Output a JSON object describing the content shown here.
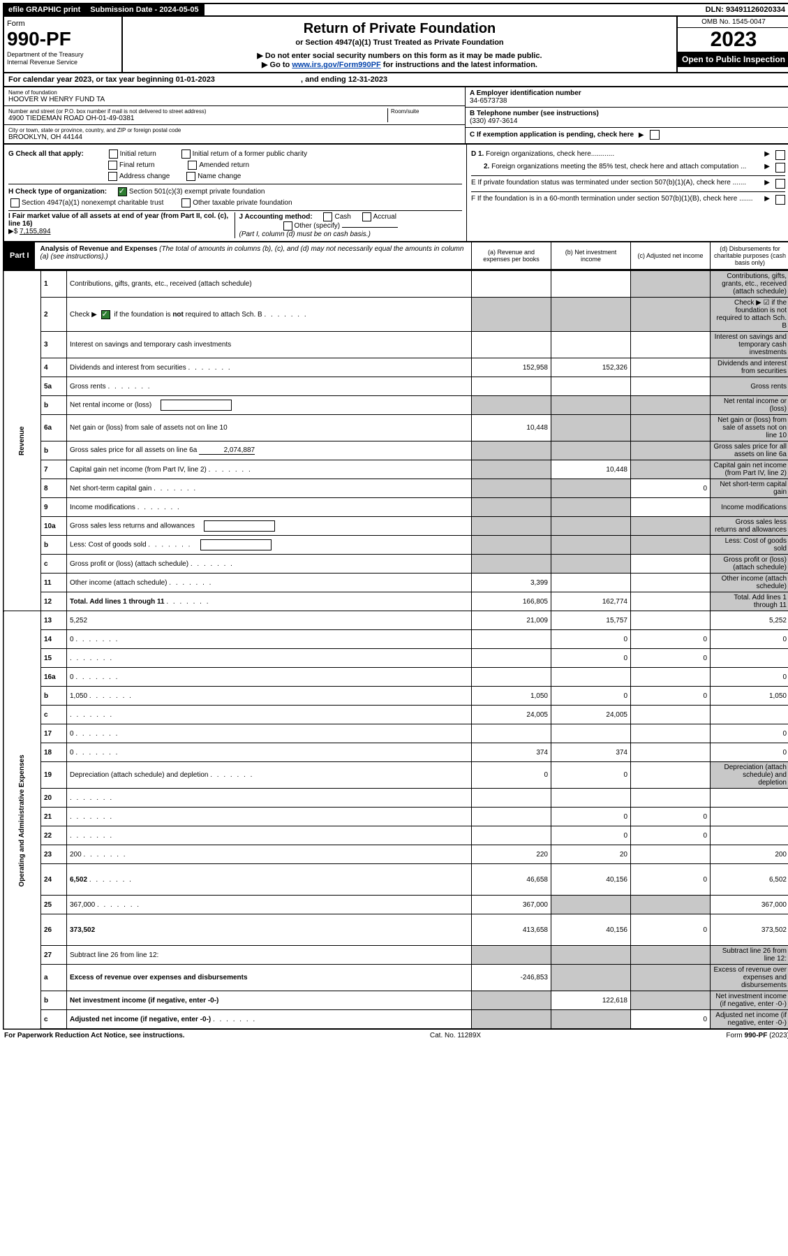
{
  "topbar": {
    "efile": "efile GRAPHIC print",
    "submission_label": "Submission Date - 2024-05-05",
    "dln": "DLN: 93491126020334"
  },
  "header": {
    "form_word": "Form",
    "form_number": "990-PF",
    "dept": "Department of the Treasury",
    "irs": "Internal Revenue Service",
    "title": "Return of Private Foundation",
    "subtitle": "or Section 4947(a)(1) Trust Treated as Private Foundation",
    "note1": "▶ Do not enter social security numbers on this form as it may be made public.",
    "note2_pre": "▶ Go to ",
    "note2_link": "www.irs.gov/Form990PF",
    "note2_post": " for instructions and the latest information.",
    "omb": "OMB No. 1545-0047",
    "year": "2023",
    "open": "Open to Public Inspection"
  },
  "calendar": {
    "text_pre": "For calendar year 2023, or tax year beginning ",
    "begin": "01-01-2023",
    "mid": " , and ending ",
    "end": "12-31-2023"
  },
  "info": {
    "name_label": "Name of foundation",
    "name": "HOOVER W HENRY FUND TA",
    "addr_label": "Number and street (or P.O. box number if mail is not delivered to street address)",
    "addr": "4900 TIEDEMAN ROAD OH-01-49-0381",
    "room_label": "Room/suite",
    "city_label": "City or town, state or province, country, and ZIP or foreign postal code",
    "city": "BROOKLYN, OH  44144",
    "a_label": "A Employer identification number",
    "a_val": "34-6573738",
    "b_label": "B Telephone number (see instructions)",
    "b_val": "(330) 497-3614",
    "c_label": "C If exemption application is pending, check here"
  },
  "g": {
    "label": "G Check all that apply:",
    "opts": [
      "Initial return",
      "Final return",
      "Address change",
      "Initial return of a former public charity",
      "Amended return",
      "Name change"
    ]
  },
  "h": {
    "label": "H Check type of organization:",
    "o1": "Section 501(c)(3) exempt private foundation",
    "o2": "Section 4947(a)(1) nonexempt charitable trust",
    "o3": "Other taxable private foundation"
  },
  "i": {
    "label": "I Fair market value of all assets at end of year (from Part II, col. (c), line 16)",
    "arrow": "▶$",
    "val": "7,155,894"
  },
  "j": {
    "label": "J Accounting method:",
    "cash": "Cash",
    "accrual": "Accrual",
    "other": "Other (specify)",
    "note": "(Part I, column (d) must be on cash basis.)"
  },
  "right_checks": {
    "d1": "D 1. Foreign organizations, check here............",
    "d2": "2. Foreign organizations meeting the 85% test, check here and attach computation ...",
    "e": "E  If private foundation status was terminated under section 507(b)(1)(A), check here .......",
    "f": "F  If the foundation is in a 60-month termination under section 507(b)(1)(B), check here .......",
    "arrow": "▶"
  },
  "part1": {
    "label": "Part I",
    "title": "Analysis of Revenue and Expenses",
    "title_note": " (The total of amounts in columns (b), (c), and (d) may not necessarily equal the amounts in column (a) (see instructions).)",
    "col_a": "(a)   Revenue and expenses per books",
    "col_b": "(b)   Net investment income",
    "col_c": "(c)   Adjusted net income",
    "col_d": "(d)  Disbursements for charitable purposes (cash basis only)"
  },
  "side_labels": {
    "revenue": "Revenue",
    "expenses": "Operating and Administrative Expenses"
  },
  "rows": [
    {
      "n": "1",
      "d": "Contributions, gifts, grants, etc., received (attach schedule)",
      "a": "",
      "b": "",
      "c_grey": true,
      "d_grey": true
    },
    {
      "n": "2",
      "d": "Check ▶ ☑ if the foundation is not required to attach Sch. B",
      "a_grey": true,
      "b_grey": true,
      "c_grey": true,
      "d_grey": true,
      "dots": true,
      "bold_not": true
    },
    {
      "n": "3",
      "d": "Interest on savings and temporary cash investments",
      "a": "",
      "b": "",
      "c": "",
      "d_grey": true
    },
    {
      "n": "4",
      "d": "Dividends and interest from securities",
      "a": "152,958",
      "b": "152,326",
      "c": "",
      "d_grey": true,
      "dots": true
    },
    {
      "n": "5a",
      "d": "Gross rents",
      "a": "",
      "b": "",
      "c": "",
      "d_grey": true,
      "dots": true
    },
    {
      "n": "b",
      "d": "Net rental income or (loss)",
      "a_grey": true,
      "b_grey": true,
      "c_grey": true,
      "d_grey": true,
      "inline_blank": true
    },
    {
      "n": "6a",
      "d": "Net gain or (loss) from sale of assets not on line 10",
      "a": "10,448",
      "b_grey": true,
      "c_grey": true,
      "d_grey": true
    },
    {
      "n": "b",
      "d": "Gross sales price for all assets on line 6a",
      "a_grey": true,
      "b_grey": true,
      "c_grey": true,
      "d_grey": true,
      "inline_val": "2,074,887"
    },
    {
      "n": "7",
      "d": "Capital gain net income (from Part IV, line 2)",
      "a_grey": true,
      "b": "10,448",
      "c_grey": true,
      "d_grey": true,
      "dots": true
    },
    {
      "n": "8",
      "d": "Net short-term capital gain",
      "a_grey": true,
      "b_grey": true,
      "c": "0",
      "d_grey": true,
      "dots": true
    },
    {
      "n": "9",
      "d": "Income modifications",
      "a_grey": true,
      "b_grey": true,
      "c": "",
      "d_grey": true,
      "dots": true
    },
    {
      "n": "10a",
      "d": "Gross sales less returns and allowances",
      "a_grey": true,
      "b_grey": true,
      "c_grey": true,
      "d_grey": true,
      "inline_blank": true
    },
    {
      "n": "b",
      "d": "Less: Cost of goods sold",
      "a_grey": true,
      "b_grey": true,
      "c_grey": true,
      "d_grey": true,
      "inline_blank": true,
      "dots": true
    },
    {
      "n": "c",
      "d": "Gross profit or (loss) (attach schedule)",
      "a_grey": true,
      "b_grey": true,
      "c": "",
      "d_grey": true,
      "dots": true
    },
    {
      "n": "11",
      "d": "Other income (attach schedule)",
      "a": "3,399",
      "b": "",
      "c": "",
      "d_grey": true,
      "dots": true
    },
    {
      "n": "12",
      "d": "Total. Add lines 1 through 11",
      "a": "166,805",
      "b": "162,774",
      "c": "",
      "d_grey": true,
      "bold": true,
      "dots": true
    }
  ],
  "exp_rows": [
    {
      "n": "13",
      "d": "5,252",
      "a": "21,009",
      "b": "15,757",
      "c": ""
    },
    {
      "n": "14",
      "d": "0",
      "a": "",
      "b": "0",
      "c": "0",
      "dots": true
    },
    {
      "n": "15",
      "d": "",
      "a": "",
      "b": "0",
      "c": "0",
      "dots": true
    },
    {
      "n": "16a",
      "d": "0",
      "a": "",
      "b": "",
      "c": "",
      "dots": true
    },
    {
      "n": "b",
      "d": "1,050",
      "a": "1,050",
      "b": "0",
      "c": "0",
      "dots": true
    },
    {
      "n": "c",
      "d": "",
      "a": "24,005",
      "b": "24,005",
      "c": "",
      "dots": true
    },
    {
      "n": "17",
      "d": "0",
      "a": "",
      "b": "",
      "c": "",
      "dots": true
    },
    {
      "n": "18",
      "d": "0",
      "a": "374",
      "b": "374",
      "c": "",
      "dots": true
    },
    {
      "n": "19",
      "d": "Depreciation (attach schedule) and depletion",
      "a": "0",
      "b": "0",
      "c": "",
      "d_grey": true,
      "dots": true
    },
    {
      "n": "20",
      "d": "",
      "a": "",
      "b": "",
      "c": "",
      "dots": true
    },
    {
      "n": "21",
      "d": "",
      "a": "",
      "b": "0",
      "c": "0",
      "dots": true
    },
    {
      "n": "22",
      "d": "",
      "a": "",
      "b": "0",
      "c": "0",
      "dots": true
    },
    {
      "n": "23",
      "d": "200",
      "a": "220",
      "b": "20",
      "c": "",
      "dots": true
    },
    {
      "n": "24",
      "d": "6,502",
      "a": "46,658",
      "b": "40,156",
      "c": "0",
      "bold": true,
      "dots": true,
      "tall": true
    },
    {
      "n": "25",
      "d": "367,000",
      "a": "367,000",
      "b_grey": true,
      "c_grey": true,
      "dots": true
    },
    {
      "n": "26",
      "d": "373,502",
      "a": "413,658",
      "b": "40,156",
      "c": "0",
      "bold": true,
      "tall": true
    },
    {
      "n": "27",
      "d": "Subtract line 26 from line 12:",
      "a_grey": true,
      "b_grey": true,
      "c_grey": true,
      "d_grey": true
    },
    {
      "n": "a",
      "d": "Excess of revenue over expenses and disbursements",
      "a": "-246,853",
      "b_grey": true,
      "c_grey": true,
      "d_grey": true,
      "bold": true
    },
    {
      "n": "b",
      "d": "Net investment income (if negative, enter -0-)",
      "a_grey": true,
      "b": "122,618",
      "c_grey": true,
      "d_grey": true,
      "bold": true
    },
    {
      "n": "c",
      "d": "Adjusted net income (if negative, enter -0-)",
      "a_grey": true,
      "b_grey": true,
      "c": "0",
      "d_grey": true,
      "bold": true,
      "dots": true
    }
  ],
  "footer": {
    "left": "For Paperwork Reduction Act Notice, see instructions.",
    "mid": "Cat. No. 11289X",
    "right": "Form 990-PF (2023)"
  }
}
